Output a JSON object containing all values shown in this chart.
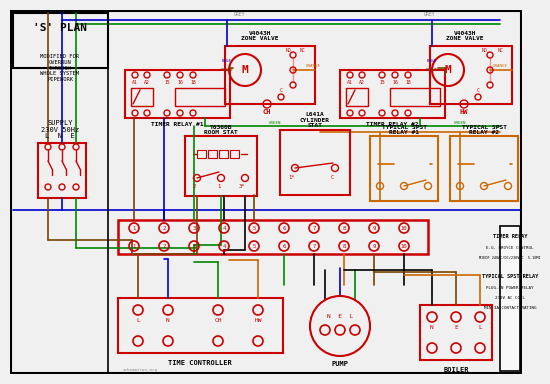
{
  "bg_color": "#f0f0f0",
  "red": "#cc0000",
  "blue": "#0000cc",
  "green": "#008800",
  "orange": "#cc6600",
  "brown": "#7a4200",
  "black": "#000000",
  "gray": "#888888",
  "lgray": "#cccccc",
  "s_plan_text": "'S' PLAN",
  "s_plan_sub": "MODIFIED FOR\nOVERRUN\nTHROUGH\nWHOLE SYSTEM\nPIPEWORK",
  "supply_text": "SUPPLY\n230V 50Hz",
  "lne_text": "L  N  E",
  "zone1_title": "V4043H\nZONE VALVE",
  "zone2_title": "V4043H\nZONE VALVE",
  "timer1_label": "TIMER RELAY #1",
  "timer2_label": "TIMER RELAY #2",
  "roomstat_title": "T6360B\nROOM STAT",
  "cylstat_title": "L641A\nCYLINDER\nSTAT",
  "relay1_title": "TYPICAL SPST\nRELAY #1",
  "relay2_title": "TYPICAL SPST\nRELAY #2",
  "time_controller": "TIME CONTROLLER",
  "pump_label": "PUMP",
  "boiler_label": "BOILER",
  "info_line1": "TIMER RELAY",
  "info_line2": "E.G. BROYCE CONTROL",
  "info_line3": "M1EDF 24VAC/DC/230VAC  5-10MI",
  "info_line4": "TYPICAL SPST RELAY",
  "info_line5": "PLUG-IN POWER RELAY",
  "info_line6": "230V AC COIL",
  "info_line7": "MIN 3A CONTACT RATING"
}
